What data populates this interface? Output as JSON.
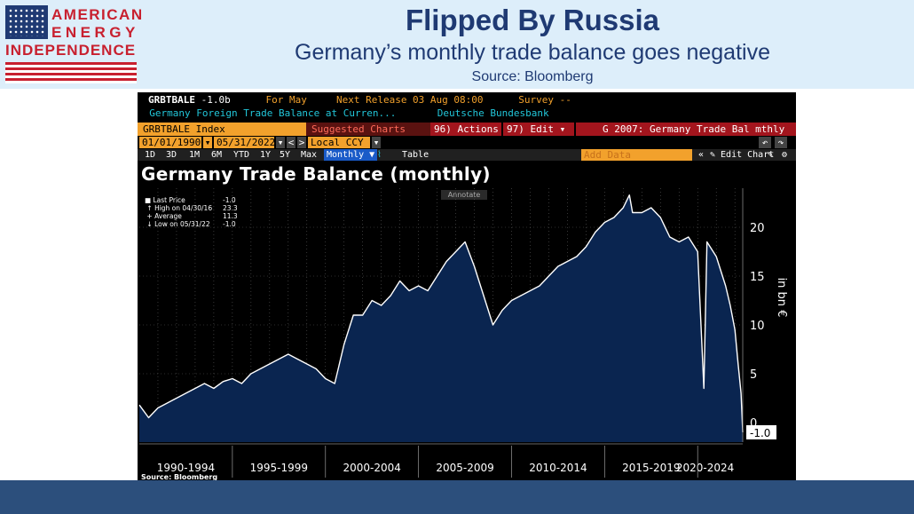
{
  "header": {
    "logo": {
      "line1": "AMERICAN",
      "line2": "ENERGY",
      "line3": "INDEPENDENCE"
    },
    "title": "Flipped By Russia",
    "subtitle": "Germany’s monthly trade balance goes negative",
    "source": "Source: Bloomberg"
  },
  "terminal": {
    "ticker": "GRBTBALE",
    "last_value": "-1.0b",
    "for_label": "For May",
    "next_release": "Next Release 03 Aug 08:00",
    "survey": "Survey --",
    "description": "Germany Foreign Trade Balance at Curren...",
    "source_name": "Deutsche Bundesbank",
    "index_label": "GRBTBALE Index",
    "suggested_charts": "Suggested Charts",
    "actions": "96) Actions ▾",
    "edit": "97) Edit ▾",
    "chart_name": "G 2007: Germany Trade Bal mthly",
    "start_date": "01/01/1990",
    "end_date": "05/31/2022",
    "currency": "Local CCY",
    "ranges": [
      "1D",
      "3D",
      "1M",
      "6M",
      "YTD",
      "1Y",
      "5Y",
      "Max"
    ],
    "frequency": "Monthly ▼",
    "table_label": "Table",
    "add_data_placeholder": "Add Data",
    "edit_chart": "✎ Edit Chart",
    "annotate": "Annotate",
    "footer_source": "Source: Bloomberg",
    "colors": {
      "orange": "#f2a12c",
      "cyan": "#22c6d9",
      "red": "#a3151d",
      "area": "#0a2550",
      "line": "#ffffff"
    }
  },
  "chart_data": {
    "type": "area",
    "title": "Germany Trade Balance (monthly)",
    "ylabel": "in bn €",
    "ylim": [
      -2,
      24
    ],
    "yticks": [
      0,
      5,
      10,
      15,
      20
    ],
    "xlim": [
      1990.0,
      2022.42
    ],
    "x_period_labels": [
      "1990-1994",
      "1995-1999",
      "2000-2004",
      "2005-2009",
      "2010-2014",
      "2015-2019",
      "2020-2024"
    ],
    "last_value_label": "-1.0",
    "legend": [
      {
        "label": "Last Price",
        "value": "-1.0"
      },
      {
        "label": "High on 04/30/16",
        "value": "23.3"
      },
      {
        "label": "Average",
        "value": "11.3"
      },
      {
        "label": "Low on 05/31/22",
        "value": "-1.0"
      }
    ],
    "x": [
      1990.0,
      1990.5,
      1991.0,
      1991.5,
      1992.0,
      1992.5,
      1993.0,
      1993.5,
      1994.0,
      1994.5,
      1995.0,
      1995.5,
      1996.0,
      1996.5,
      1997.0,
      1997.5,
      1998.0,
      1998.5,
      1999.0,
      1999.5,
      2000.0,
      2000.5,
      2001.0,
      2001.5,
      2002.0,
      2002.5,
      2003.0,
      2003.5,
      2004.0,
      2004.5,
      2005.0,
      2005.5,
      2006.0,
      2006.5,
      2007.0,
      2007.5,
      2008.0,
      2008.5,
      2009.0,
      2009.5,
      2010.0,
      2010.5,
      2011.0,
      2011.5,
      2012.0,
      2012.5,
      2013.0,
      2013.5,
      2014.0,
      2014.5,
      2015.0,
      2015.5,
      2016.0,
      2016.33,
      2016.5,
      2017.0,
      2017.5,
      2018.0,
      2018.5,
      2019.0,
      2019.5,
      2020.0,
      2020.33,
      2020.5,
      2021.0,
      2021.5,
      2021.75,
      2022.0,
      2022.17,
      2022.33,
      2022.42
    ],
    "y": [
      1.8,
      0.5,
      1.5,
      2.0,
      2.5,
      3.0,
      3.5,
      4.0,
      3.5,
      4.2,
      4.5,
      4.0,
      5.0,
      5.5,
      6.0,
      6.5,
      7.0,
      6.5,
      6.0,
      5.5,
      4.5,
      4.0,
      8.0,
      11.0,
      11.0,
      12.5,
      12.0,
      13.0,
      14.5,
      13.5,
      14.0,
      13.5,
      15.0,
      16.5,
      17.5,
      18.5,
      16.0,
      13.0,
      10.0,
      11.5,
      12.5,
      13.0,
      13.5,
      14.0,
      15.0,
      16.0,
      16.5,
      17.0,
      18.0,
      19.5,
      20.5,
      21.0,
      22.0,
      23.3,
      21.5,
      21.5,
      22.0,
      21.0,
      19.0,
      18.5,
      19.0,
      17.5,
      3.5,
      18.5,
      17.0,
      14.0,
      12.0,
      9.5,
      6.0,
      3.0,
      -1.0
    ]
  }
}
